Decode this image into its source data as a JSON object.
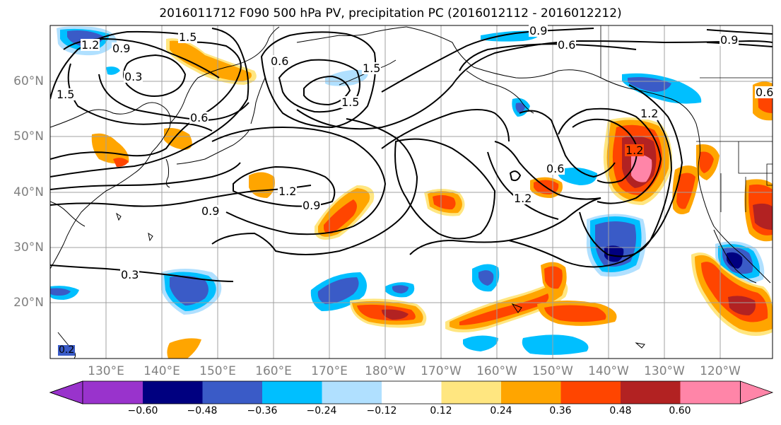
{
  "title": "2016011712 F090 500 hPa PV, precipitation PC (2016012112 - 2016012212)",
  "lat_labels": [
    "60°N",
    "50°N",
    "40°N",
    "30°N",
    "20°N"
  ],
  "lon_labels": [
    "130°E",
    "140°E",
    "150°E",
    "160°E",
    "170°E",
    "180°W",
    "170°W",
    "160°W",
    "150°W",
    "140°W",
    "130°W",
    "120°W"
  ],
  "contour_labels": [
    "1.2",
    "0.9",
    "0.3",
    "1.5",
    "0.6",
    "1.5",
    "0.6",
    "1.5",
    "1.5",
    "0.9",
    "0.6",
    "0.9",
    "0.6",
    "1.2",
    "1.2",
    "0.9",
    "0.6",
    "1.2",
    "0.9",
    "0.3",
    "1.2",
    "0.2"
  ],
  "colorbar": {
    "tick_labels": [
      "−0.60",
      "−0.48",
      "−0.36",
      "−0.24",
      "−0.12",
      "0.12",
      "0.24",
      "0.36",
      "0.48",
      "0.60"
    ],
    "colors": [
      "#9933cc",
      "#000080",
      "#3a5bc7",
      "#00bfff",
      "#b0e0ff",
      "#ffffff",
      "#ffe680",
      "#ffa500",
      "#ff4500",
      "#b22222",
      "#ff85a8"
    ]
  },
  "map_data": {
    "projection": "cylindrical",
    "lat_range": [
      10,
      70
    ],
    "lon_range": [
      120,
      250
    ],
    "contour_field": "500 hPa PV",
    "fill_field": "precipitation PC"
  }
}
